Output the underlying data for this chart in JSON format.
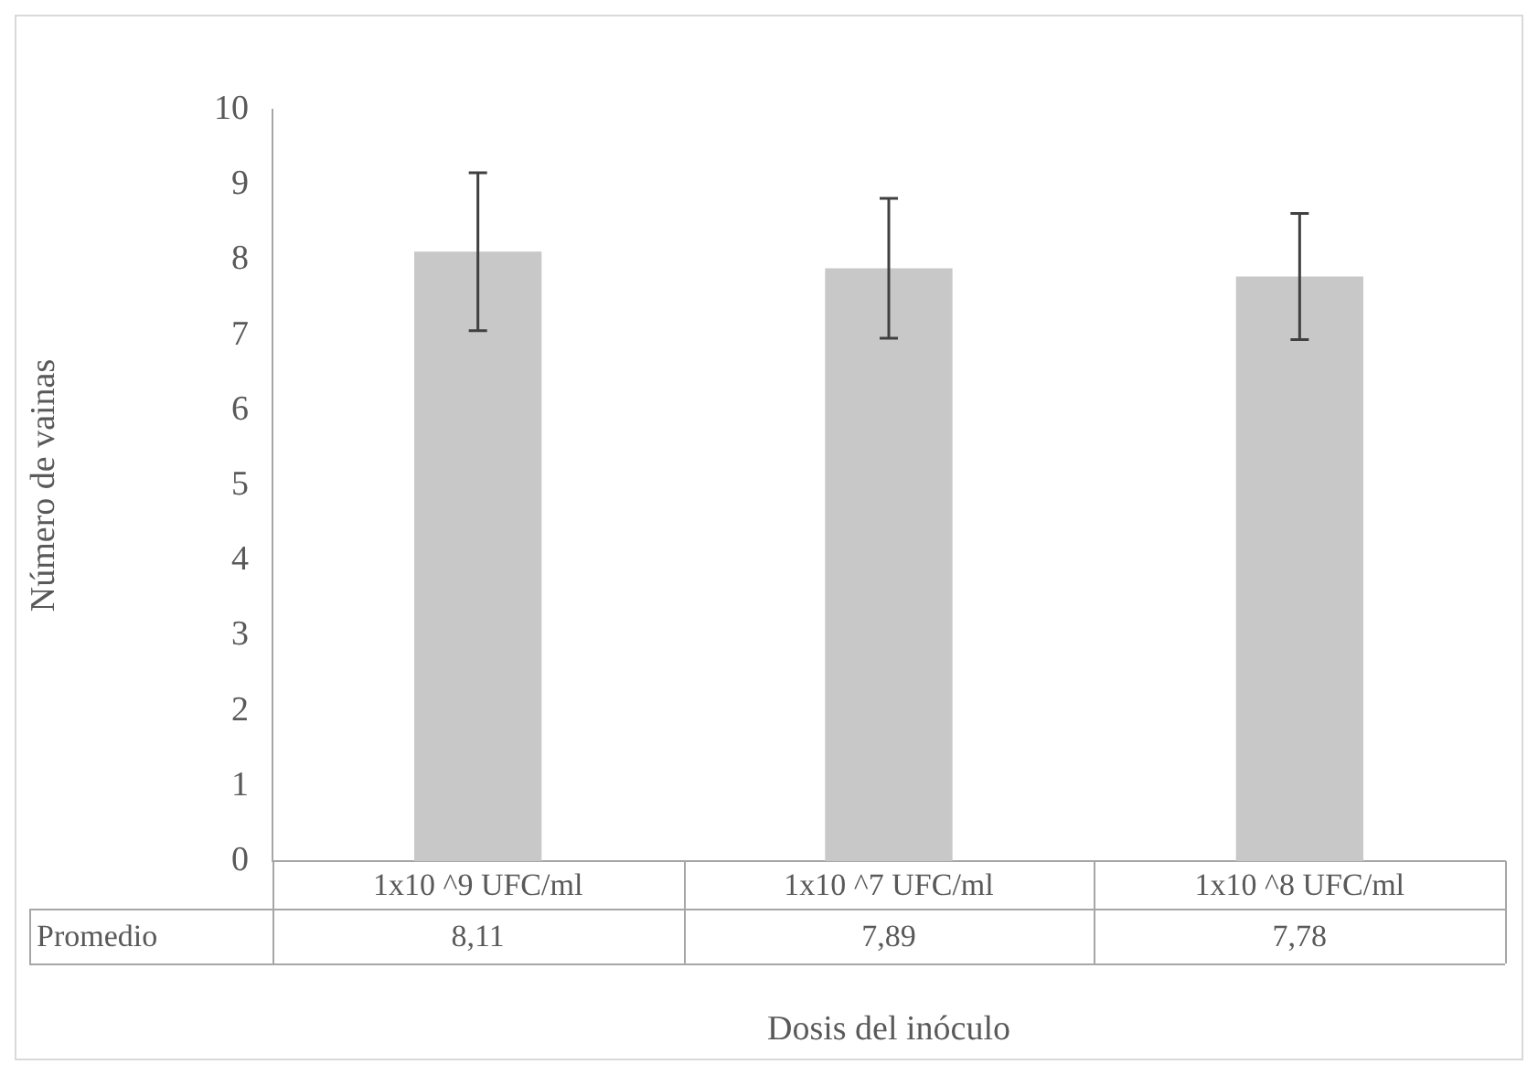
{
  "chart_data": {
    "type": "bar",
    "xlabel": "Dosis del inóculo",
    "ylabel": "Número de vainas",
    "categories": [
      "1x10 ^9 UFC/ml",
      "1x10 ^7 UFC/ml",
      "1x10 ^8 UFC/ml"
    ],
    "series": [
      {
        "name": "Promedio",
        "color": "#c8c8c8",
        "values": [
          8.11,
          7.89,
          7.78
        ],
        "errors": [
          1.05,
          0.93,
          0.84
        ],
        "value_labels": [
          "8,11",
          "7,89",
          "7,78"
        ]
      }
    ],
    "ylim": [
      0,
      10
    ],
    "yticks": [
      0,
      1,
      2,
      3,
      4,
      5,
      6,
      7,
      8,
      9,
      10
    ],
    "legend": false
  }
}
